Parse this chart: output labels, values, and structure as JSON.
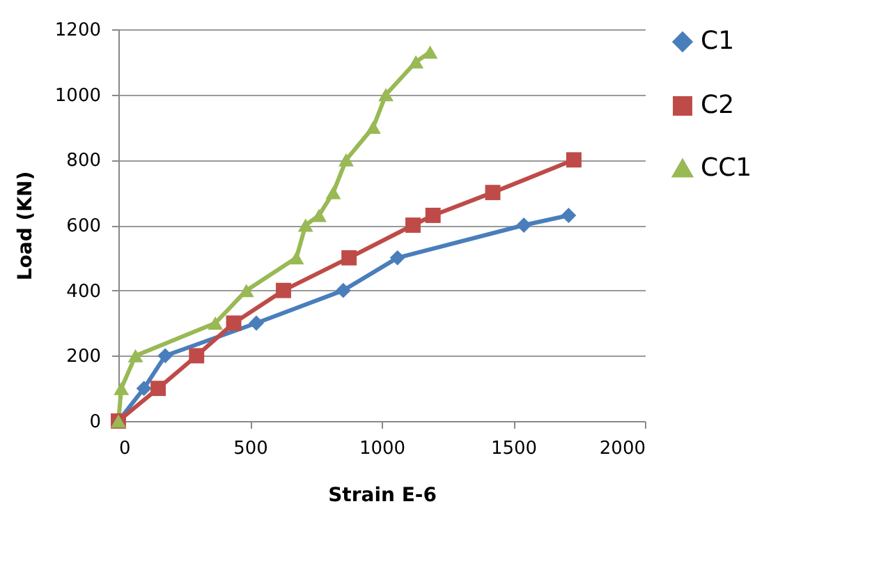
{
  "chart_data": {
    "type": "line",
    "xlabel": "Strain E-6",
    "ylabel": "Load (KN)",
    "xlim": [
      0,
      2000
    ],
    "xticks": [
      0,
      500,
      1000,
      1500,
      2000
    ],
    "ylim": [
      0,
      1200
    ],
    "yticks": [
      0,
      200,
      400,
      600,
      800,
      1000,
      1200
    ],
    "grid": "y",
    "legend": "right",
    "series": [
      {
        "name": "C1",
        "color": "#4a7ebb",
        "marker": "diamond",
        "x": [
          0,
          97,
          178,
          524,
          854,
          1060,
          1540,
          1710
        ],
        "values": [
          0,
          100,
          200,
          300,
          400,
          500,
          600,
          630
        ]
      },
      {
        "name": "C2",
        "color": "#be4b48",
        "marker": "square",
        "x": [
          0,
          151,
          297,
          438,
          627,
          876,
          1119,
          1195,
          1422,
          1730
        ],
        "values": [
          0,
          100,
          200,
          300,
          400,
          500,
          600,
          630,
          700,
          800
        ]
      },
      {
        "name": "CC1",
        "color": "#98b954",
        "marker": "triangle",
        "x": [
          0,
          11,
          65,
          368,
          486,
          676,
          711,
          762,
          816,
          865,
          968,
          1016,
          1130,
          1184
        ],
        "values": [
          0,
          100,
          200,
          300,
          400,
          500,
          600,
          630,
          700,
          800,
          900,
          1000,
          1100,
          1130
        ]
      }
    ]
  }
}
